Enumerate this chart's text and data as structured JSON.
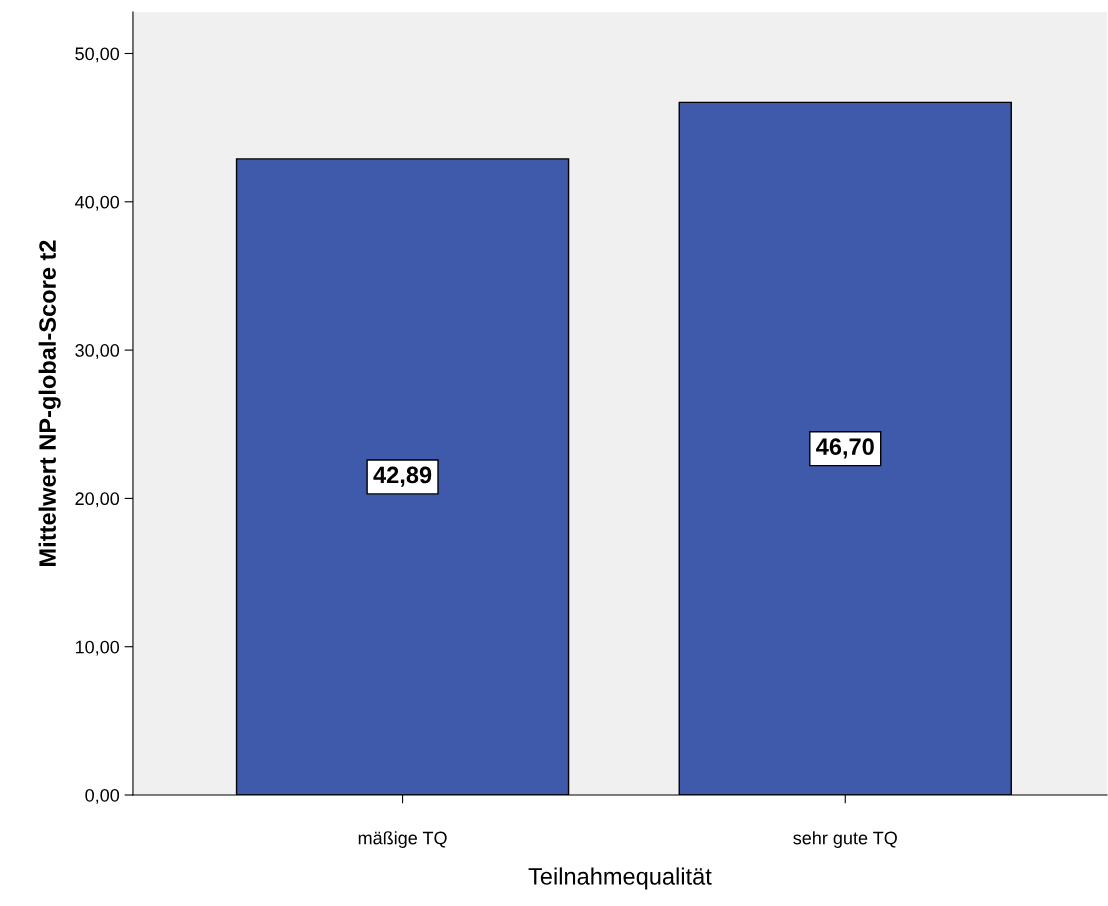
{
  "chart_data": {
    "type": "bar",
    "xlabel": "Teilnahmequalität",
    "ylabel": "Mittelwert NP-global-Score t2",
    "categories": [
      "mäßige TQ",
      "sehr gute TQ"
    ],
    "values": [
      42.89,
      46.7
    ],
    "value_labels": [
      "42,89",
      "46,70"
    ],
    "color": "#3f5aab",
    "ylim": [
      0,
      52.8
    ],
    "yticks": [
      {
        "value": 0,
        "label": "0,00"
      },
      {
        "value": 10,
        "label": "10,00"
      },
      {
        "value": 20,
        "label": "20,00"
      },
      {
        "value": 30,
        "label": "30,00"
      },
      {
        "value": 40,
        "label": "40,00"
      },
      {
        "value": 50,
        "label": "50,00"
      }
    ],
    "grid": false
  }
}
